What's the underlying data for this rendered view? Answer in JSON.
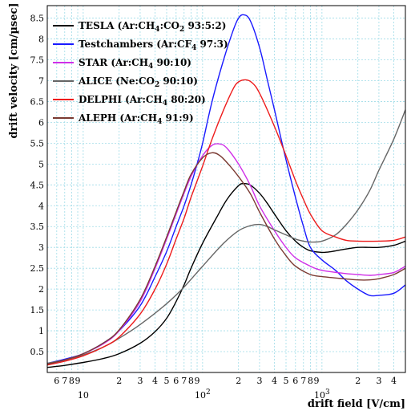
{
  "chart_data": {
    "type": "line",
    "xlabel": "drift field [V/cm]",
    "ylabel": "drift velocity [cm/µsec]",
    "xscale": "log",
    "xlim": [
      5,
      5000
    ],
    "ylim": [
      0,
      8.8
    ],
    "grid": true,
    "legend_position": "top-left",
    "y_ticks": [
      "0.5",
      "1",
      "1.5",
      "2",
      "2.5",
      "3",
      "3.5",
      "4",
      "4.5",
      "5",
      "5.5",
      "6",
      "6.5",
      "7",
      "7.5",
      "8",
      "8.5"
    ],
    "x_decade_labels": [
      {
        "base": "10",
        "exp": ""
      },
      {
        "base": "10",
        "exp": "2"
      },
      {
        "base": "10",
        "exp": "3"
      }
    ],
    "x_minor_labels": [
      "6",
      "7",
      "8",
      "9",
      "2",
      "3",
      "4",
      "5",
      "6",
      "7",
      "8",
      "9",
      "2",
      "3",
      "4",
      "5",
      "6",
      "7",
      "8",
      "9",
      "2",
      "3",
      "4"
    ],
    "series": [
      {
        "color": "#000000",
        "legend": {
          "pre": "TESLA (Ar:CH",
          "sub1": "4",
          "mid": ":CO",
          "sub2": "2",
          "post": " 93:5:2)"
        },
        "x": [
          5,
          7,
          10,
          15,
          20,
          30,
          40,
          50,
          60,
          70,
          80,
          100,
          130,
          160,
          200,
          220,
          250,
          300,
          350,
          400,
          500,
          600,
          700,
          800,
          1000,
          1200,
          1500,
          2000,
          2500,
          3000,
          4000,
          5000
        ],
        "y": [
          0.12,
          0.17,
          0.24,
          0.34,
          0.45,
          0.7,
          0.98,
          1.3,
          1.7,
          2.1,
          2.5,
          3.1,
          3.7,
          4.15,
          4.48,
          4.53,
          4.5,
          4.3,
          4.05,
          3.8,
          3.4,
          3.15,
          3.0,
          2.92,
          2.88,
          2.9,
          2.95,
          3.0,
          3.0,
          3.0,
          3.05,
          3.15
        ]
      },
      {
        "color": "#1a1aff",
        "legend": {
          "pre": "Testchambers (Ar:CF",
          "sub1": "4",
          "mid": "",
          "sub2": "",
          "post": " 97:3)"
        },
        "x": [
          5,
          7,
          10,
          15,
          20,
          30,
          40,
          50,
          60,
          70,
          80,
          90,
          100,
          120,
          150,
          180,
          200,
          220,
          250,
          300,
          350,
          400,
          500,
          600,
          700,
          800,
          1000,
          1300,
          1600,
          2000,
          2500,
          3000,
          4000,
          5000
        ],
        "y": [
          0.22,
          0.32,
          0.45,
          0.72,
          1.0,
          1.6,
          2.3,
          2.9,
          3.5,
          4.0,
          4.5,
          5.0,
          5.5,
          6.5,
          7.5,
          8.2,
          8.5,
          8.58,
          8.45,
          7.8,
          7.0,
          6.3,
          5.1,
          4.2,
          3.5,
          3.0,
          2.7,
          2.45,
          2.2,
          2.0,
          1.85,
          1.85,
          1.9,
          2.1
        ]
      },
      {
        "color": "#d030e8",
        "legend": {
          "pre": "STAR (Ar:CH",
          "sub1": "4",
          "mid": "",
          "sub2": "",
          "post": " 90:10)"
        },
        "x": [
          5,
          7,
          10,
          15,
          20,
          30,
          40,
          50,
          60,
          70,
          80,
          100,
          120,
          140,
          160,
          200,
          250,
          300,
          400,
          500,
          600,
          800,
          1000,
          1500,
          2000,
          2500,
          3000,
          4000,
          5000
        ],
        "y": [
          0.2,
          0.3,
          0.45,
          0.7,
          1.0,
          1.7,
          2.5,
          3.2,
          3.8,
          4.3,
          4.7,
          5.2,
          5.45,
          5.48,
          5.38,
          5.0,
          4.5,
          4.0,
          3.4,
          3.0,
          2.75,
          2.55,
          2.45,
          2.38,
          2.35,
          2.33,
          2.35,
          2.4,
          2.55
        ]
      },
      {
        "color": "#666666",
        "legend": {
          "pre": "ALICE (Ne:CO",
          "sub1": "2",
          "mid": "",
          "sub2": "",
          "post": " 90:10)"
        },
        "x": [
          5,
          7,
          10,
          15,
          20,
          30,
          50,
          70,
          100,
          150,
          200,
          250,
          300,
          350,
          400,
          500,
          600,
          700,
          800,
          1000,
          1300,
          1600,
          2000,
          2500,
          3000,
          4000,
          5000
        ],
        "y": [
          0.22,
          0.3,
          0.42,
          0.62,
          0.82,
          1.15,
          1.65,
          2.05,
          2.55,
          3.1,
          3.4,
          3.52,
          3.55,
          3.5,
          3.42,
          3.3,
          3.2,
          3.15,
          3.13,
          3.15,
          3.3,
          3.55,
          3.9,
          4.35,
          4.85,
          5.6,
          6.3
        ]
      },
      {
        "color": "#ee1c1c",
        "legend": {
          "pre": "DELPHI (Ar:CH",
          "sub1": "4",
          "mid": "",
          "sub2": "",
          "post": " 80:20)"
        },
        "x": [
          5,
          7,
          10,
          15,
          20,
          30,
          40,
          50,
          60,
          70,
          80,
          100,
          120,
          150,
          180,
          200,
          230,
          260,
          300,
          400,
          500,
          600,
          700,
          800,
          1000,
          1300,
          1600,
          2000,
          3000,
          4000,
          5000
        ],
        "y": [
          0.18,
          0.27,
          0.4,
          0.62,
          0.85,
          1.4,
          2.0,
          2.6,
          3.2,
          3.7,
          4.2,
          4.95,
          5.6,
          6.3,
          6.8,
          6.97,
          7.02,
          6.95,
          6.7,
          5.9,
          5.2,
          4.6,
          4.15,
          3.8,
          3.4,
          3.25,
          3.17,
          3.15,
          3.15,
          3.17,
          3.25
        ]
      },
      {
        "color": "#7a3a32",
        "legend": {
          "pre": "ALEPH (Ar:CH",
          "sub1": "4",
          "mid": "",
          "sub2": "",
          "post": " 91:9)"
        },
        "x": [
          5,
          7,
          10,
          15,
          20,
          30,
          40,
          50,
          60,
          70,
          80,
          100,
          120,
          140,
          170,
          200,
          250,
          300,
          400,
          500,
          600,
          800,
          1000,
          1500,
          2000,
          2500,
          3000,
          4000,
          5000
        ],
        "y": [
          0.2,
          0.3,
          0.45,
          0.72,
          1.02,
          1.75,
          2.55,
          3.25,
          3.85,
          4.35,
          4.75,
          5.15,
          5.27,
          5.2,
          4.95,
          4.7,
          4.3,
          3.85,
          3.2,
          2.8,
          2.55,
          2.35,
          2.3,
          2.25,
          2.22,
          2.22,
          2.25,
          2.35,
          2.5
        ]
      }
    ]
  }
}
